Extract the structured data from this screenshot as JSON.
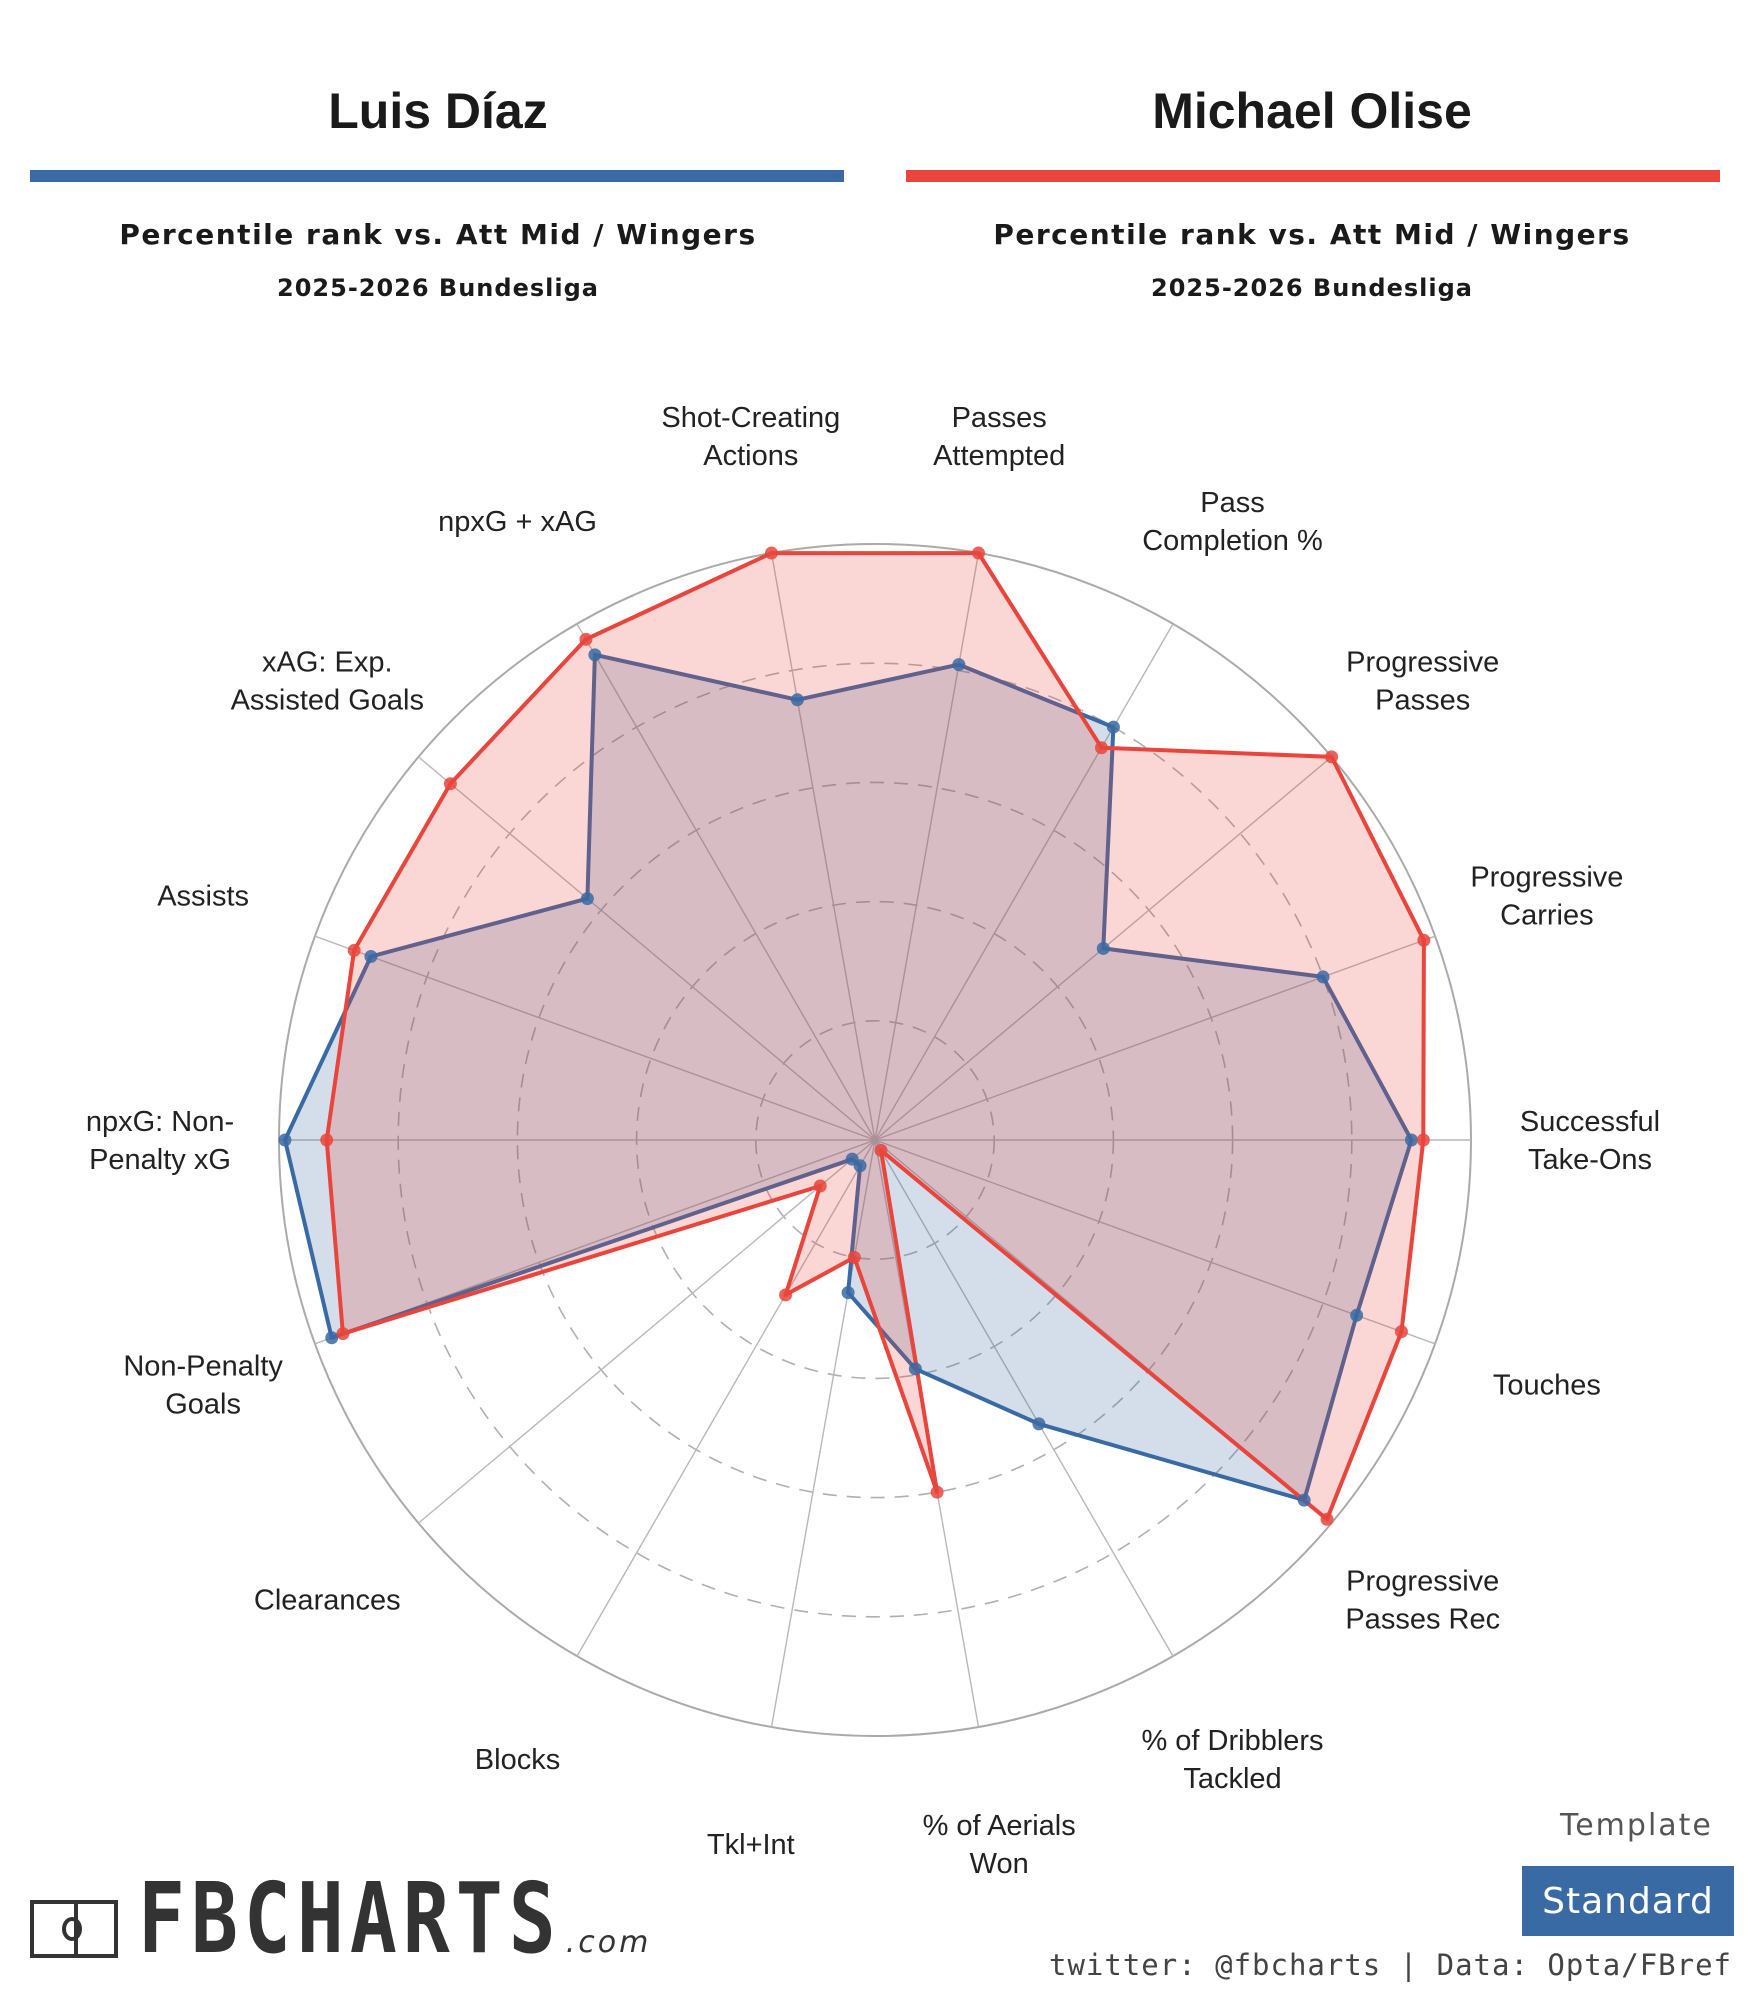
{
  "header": {
    "left": {
      "name": "Luis Díaz",
      "subtitle": "Percentile rank vs. Att Mid / Wingers",
      "season": "2025-2026 Bundesliga",
      "color": "#3a6aa3"
    },
    "right": {
      "name": "Michael Olise",
      "subtitle": "Percentile rank vs. Att Mid / Wingers",
      "season": "2025-2026 Bundesliga",
      "color": "#e8453c"
    }
  },
  "chart_data": {
    "type": "radar",
    "range": [
      0,
      100
    ],
    "grid": true,
    "categories": [
      "Passes Attempted",
      "Pass Completion %",
      "Progressive Passes",
      "Progressive Carries",
      "Successful Take-Ons",
      "Touches",
      "Progressive Passes Rec",
      "% of Dribblers Tackled",
      "% of Aerials Won",
      "Tkl+Int",
      "Blocks",
      "Clearances",
      "Non-Penalty Goals",
      "npxG: Non-Penalty xG",
      "Assists",
      "xAG: Exp. Assisted Goals",
      "npxG + xAG",
      "Shot-Creating Actions"
    ],
    "category_lines": [
      [
        "Passes",
        "Attempted"
      ],
      [
        "Pass",
        "Completion %"
      ],
      [
        "Progressive",
        "Passes"
      ],
      [
        "Progressive",
        "Carries"
      ],
      [
        "Successful",
        "Take-Ons"
      ],
      [
        "Touches"
      ],
      [
        "Progressive",
        "Passes Rec"
      ],
      [
        "% of Dribblers",
        "Tackled"
      ],
      [
        "% of Aerials",
        "Won"
      ],
      [
        "Tkl+Int"
      ],
      [
        "Blocks"
      ],
      [
        "Clearances"
      ],
      [
        "Non-Penalty",
        "Goals"
      ],
      [
        "npxG: Non-",
        "Penalty xG"
      ],
      [
        "Assists"
      ],
      [
        "xAG: Exp.",
        "Assisted Goals"
      ],
      [
        "npxG + xAG"
      ],
      [
        "Shot-Creating",
        "Actions"
      ]
    ],
    "series": [
      {
        "name": "Luis Díaz",
        "color": "#3a6aa3",
        "values": [
          81,
          80,
          50,
          80,
          90,
          86,
          94,
          55,
          39,
          26,
          5,
          5,
          97,
          99,
          90,
          63,
          94,
          75
        ]
      },
      {
        "name": "Michael Olise",
        "color": "#e8453c",
        "values": [
          100,
          76,
          100,
          98,
          92,
          94,
          99,
          2,
          60,
          20,
          30,
          12,
          95,
          92,
          93,
          93,
          97,
          100
        ]
      }
    ]
  },
  "footer": {
    "template_label": "Template",
    "template_value": "Standard",
    "logo_text": "FBCHARTS",
    "logo_suffix": ".com",
    "credit": "twitter: @fbcharts | Data: Opta/FBref"
  }
}
